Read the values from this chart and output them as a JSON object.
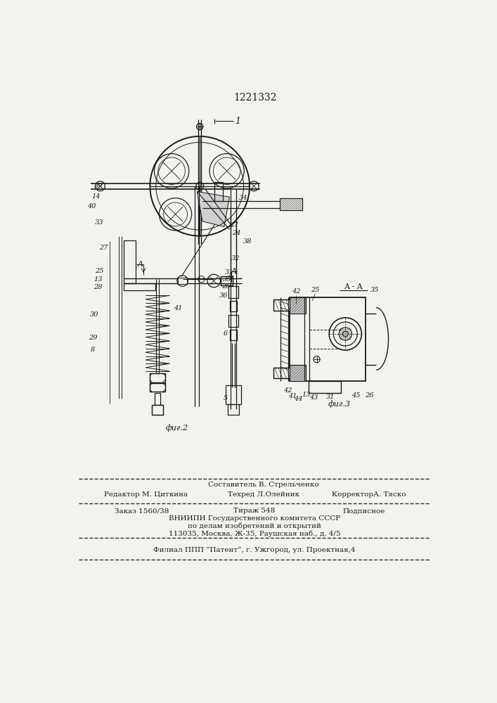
{
  "patent_number": "1221332",
  "bg": "#f2f2ee",
  "lc": "#1a1a1a",
  "fig2_caption": "фиг.2",
  "fig3_caption": "фиг.3",
  "footer_line1_center": "Составитель В. Стрельченко",
  "footer_line2_left": "Редактор М. Циткина",
  "footer_line2_center": "Техред Л.Олейник",
  "footer_line2_right": "КорректорА. Тяско",
  "footer_line3_left": "Заказ 1560/38",
  "footer_line3_center": "Тираж 548",
  "footer_line3_right": "Подписное",
  "footer_line4": "ВНИИПИ Государственного комитета СССР",
  "footer_line5": "по делам изобретений и открытий",
  "footer_line6": "113035, Москва, Ж-35, Раушская наб., д. 4/5",
  "footer_line7": "Филиал ППП “Патент”, г. Ужгород, ул. Проектная,4"
}
